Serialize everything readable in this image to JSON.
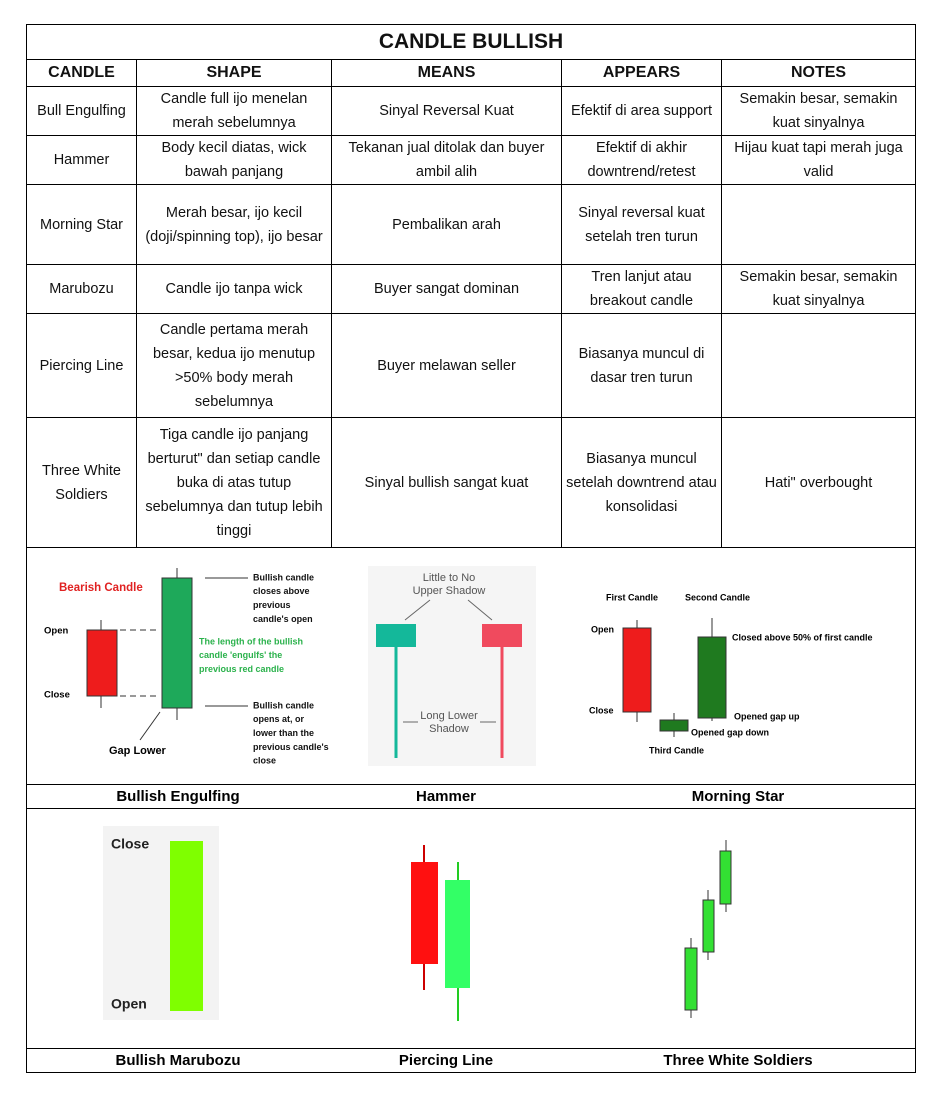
{
  "title": "CANDLE BULLISH",
  "table": {
    "headers": [
      "CANDLE",
      "SHAPE",
      "MEANS",
      "APPEARS",
      "NOTES"
    ],
    "rows": [
      [
        "Bull Engulfing",
        "Candle full ijo menelan merah sebelumnya",
        "Sinyal Reversal Kuat",
        "Efektif di area support",
        "Semakin besar, semakin kuat sinyalnya"
      ],
      [
        "Hammer",
        "Body kecil diatas, wick bawah panjang",
        "Tekanan jual ditolak dan buyer ambil alih",
        "Efektif di akhir downtrend/retest",
        "Hijau kuat tapi merah juga valid"
      ],
      [
        "Morning Star",
        "Merah besar, ijo kecil (doji/spinning top), ijo besar",
        "Pembalikan arah",
        "Sinyal reversal kuat setelah  tren turun"
      ],
      [
        "Marubozu",
        "Candle ijo tanpa wick",
        "Buyer sangat dominan",
        "Tren lanjut atau breakout candle",
        "Semakin besar, semakin kuat sinyalnya"
      ],
      [
        "Piercing Line",
        "Candle pertama merah besar, kedua ijo menutup >50% body merah sebelumnya",
        "Buyer melawan seller",
        "Biasanya muncul di dasar tren turun"
      ],
      [
        "Three White Soldiers",
        "Tiga candle ijo panjang berturut\" dan setiap candle buka di atas tutup sebelumnya dan tutup lebih tinggi",
        "Sinyal bullish sangat kuat",
        "Biasanya muncul setelah downtrend atau konsolidasi",
        "Hati\" overbought"
      ]
    ]
  },
  "figures": [
    {
      "caption": "Bullish Engulfing",
      "labels": {
        "bearish": "Bearish Candle",
        "open": "Open",
        "close": "Close",
        "gap": "Gap Lower",
        "closes_note": [
          "Bullish candle",
          "closes above",
          "previous",
          "candle's open"
        ],
        "engulfs_note": [
          "The length of the bullish",
          "candle 'engulfs' the",
          "previous red candle"
        ],
        "opens_note": [
          "Bullish candle",
          "opens at, or",
          "lower than the",
          "previous candle's",
          "close"
        ]
      }
    },
    {
      "caption": "Hammer",
      "labels": {
        "upper": [
          "Little to No",
          "Upper Shadow"
        ],
        "lower": [
          "Long Lower",
          "Shadow"
        ]
      }
    },
    {
      "caption": "Morning Star",
      "labels": {
        "first": "First Candle",
        "second": "Second Candle",
        "open": "Open",
        "close": "Close",
        "closed_above": "Closed above 50% of first candle",
        "gap_up": "Opened gap up",
        "gap_down": "Opened gap down",
        "third": "Third Candle"
      }
    },
    {
      "caption": "Bullish Marubozu",
      "labels": {
        "close": "Close",
        "open": "Open"
      }
    },
    {
      "caption": "Piercing Line"
    },
    {
      "caption": "Three White Soldiers"
    }
  ]
}
